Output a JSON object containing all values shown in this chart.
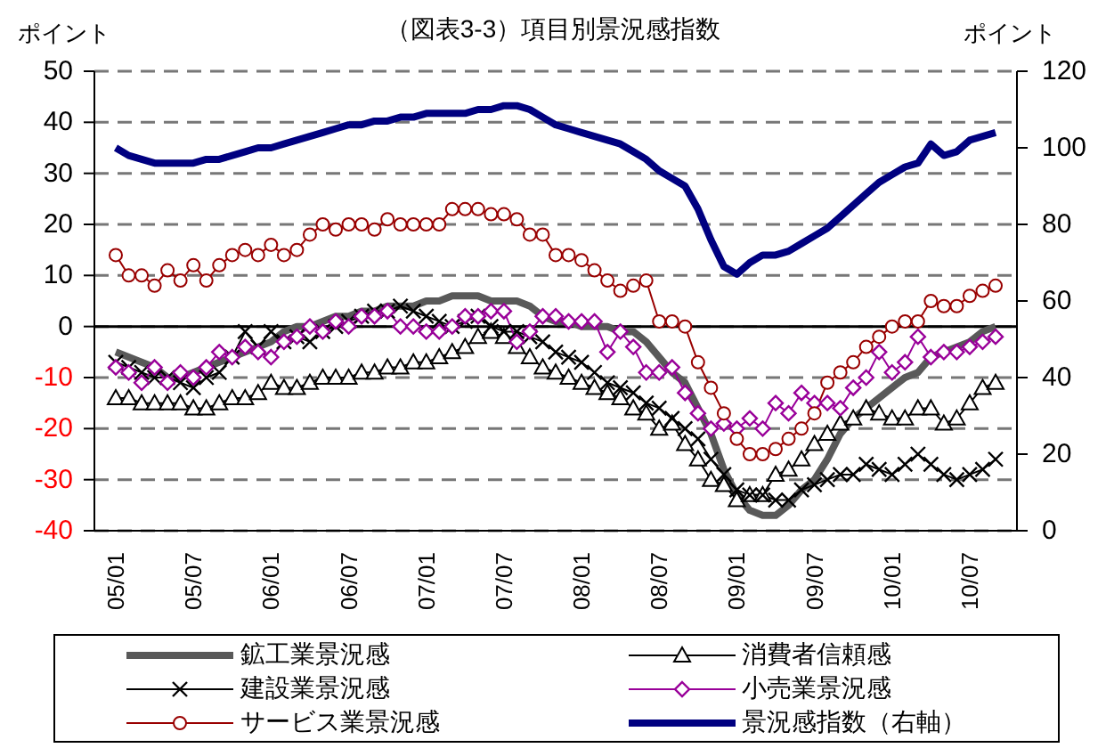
{
  "chart_data": {
    "type": "line",
    "title": "（図表3-3）項目別景況感指数",
    "ylabel": "ポイント",
    "y2label": "ポイント",
    "categories": [
      "05/01",
      null,
      null,
      null,
      null,
      null,
      "05/07",
      null,
      null,
      null,
      null,
      null,
      "06/01",
      null,
      null,
      null,
      null,
      null,
      "06/07",
      null,
      null,
      null,
      null,
      null,
      "07/01",
      null,
      null,
      null,
      null,
      null,
      "07/07",
      null,
      null,
      null,
      null,
      null,
      "08/01",
      null,
      null,
      null,
      null,
      null,
      "08/07",
      null,
      null,
      null,
      null,
      null,
      "09/01",
      null,
      null,
      null,
      null,
      null,
      "09/07",
      null,
      null,
      null,
      null,
      null,
      "10/01",
      null,
      null,
      null,
      null,
      null,
      "10/07",
      null,
      null
    ],
    "series": [
      {
        "name": "鉱工業景況感",
        "color": "#595959",
        "marker": "none",
        "values": [
          -5,
          -6,
          -7,
          -8,
          -10,
          -10,
          -9,
          -8,
          -7,
          -6,
          -5,
          -4,
          -3,
          -1,
          0,
          0,
          1,
          2,
          2,
          3,
          3,
          4,
          4,
          4,
          5,
          5,
          6,
          6,
          6,
          5,
          5,
          5,
          4,
          2,
          1,
          1,
          0,
          0,
          0,
          -1,
          -1,
          -3,
          -6,
          -9,
          -11,
          -16,
          -21,
          -28,
          -33,
          -36,
          -37,
          -37,
          -35,
          -32,
          -30,
          -26,
          -21,
          -18,
          -16,
          -14,
          -12,
          -10,
          -9,
          -6,
          -5,
          -4,
          -3,
          -1,
          0
        ]
      },
      {
        "name": "消費者信頼感",
        "color": "#000000",
        "marker": "triangle",
        "values": [
          -14,
          -14,
          -15,
          -15,
          -15,
          -15,
          -16,
          -16,
          -15,
          -14,
          -14,
          -13,
          -11,
          -12,
          -12,
          -11,
          -10,
          -10,
          -10,
          -9,
          -9,
          -8,
          -8,
          -7,
          -7,
          -6,
          -5,
          -4,
          -2,
          -1,
          -2,
          -4,
          -6,
          -8,
          -9,
          -10,
          -11,
          -12,
          -13,
          -14,
          -16,
          -17,
          -20,
          -19,
          -23,
          -26,
          -30,
          -31,
          -34,
          -33,
          -33,
          -29,
          -28,
          -26,
          -23,
          -21,
          -19,
          -18,
          -16,
          -17,
          -18,
          -18,
          -16,
          -16,
          -19,
          -18,
          -15,
          -12,
          -11
        ]
      },
      {
        "name": "建設業景況感",
        "color": "#000000",
        "marker": "cross",
        "values": [
          -7,
          -8,
          -9,
          -10,
          -10,
          -11,
          -12,
          -10,
          -9,
          -6,
          -1,
          -4,
          -1,
          -3,
          -2,
          -3,
          -1,
          0,
          1,
          2,
          3,
          3,
          4,
          3,
          2,
          1,
          0,
          1,
          2,
          0,
          -1,
          -1,
          -2,
          -3,
          -5,
          -6,
          -7,
          -9,
          -11,
          -12,
          -13,
          -15,
          -16,
          -18,
          -20,
          -22,
          -26,
          -29,
          -32,
          -33,
          -33,
          -34,
          -34,
          -32,
          -31,
          -30,
          -29,
          -29,
          -27,
          -28,
          -29,
          -27,
          -25,
          -27,
          -29,
          -30,
          -29,
          -28,
          -26
        ]
      },
      {
        "name": "小売業景況感",
        "color": "#990099",
        "marker": "diamond",
        "values": [
          -8,
          -9,
          -11,
          -8,
          -11,
          -9,
          -10,
          -8,
          -5,
          -6,
          -4,
          -5,
          -6,
          -3,
          -2,
          0,
          -1,
          1,
          0,
          2,
          2,
          3,
          0,
          0,
          -1,
          -1,
          0,
          2,
          2,
          3,
          3,
          -3,
          -1,
          2,
          2,
          1,
          1,
          1,
          -5,
          -1,
          -4,
          -9,
          -9,
          -8,
          -13,
          -17,
          -20,
          -19,
          -20,
          -18,
          -20,
          -15,
          -17,
          -13,
          -15,
          -15,
          -16,
          -12,
          -10,
          -5,
          -9,
          -7,
          -2,
          -6,
          -5,
          -5,
          -4,
          -3,
          -2
        ]
      },
      {
        "name": "サービス業景況感",
        "color": "#990000",
        "marker": "circle",
        "values": [
          14,
          10,
          10,
          8,
          11,
          9,
          12,
          9,
          12,
          14,
          15,
          14,
          16,
          14,
          15,
          18,
          20,
          19,
          20,
          20,
          19,
          21,
          20,
          20,
          20,
          20,
          23,
          23,
          23,
          22,
          22,
          21,
          18,
          18,
          14,
          14,
          13,
          11,
          9,
          7,
          8,
          9,
          1,
          1,
          0,
          -7,
          -12,
          -17,
          -22,
          -25,
          -25,
          -24,
          -22,
          -20,
          -17,
          -11,
          -9,
          -7,
          -4,
          -2,
          0,
          1,
          1,
          5,
          4,
          4,
          6,
          7,
          8
        ]
      },
      {
        "name": "景況感指数（右軸）",
        "color": "#000080",
        "marker": "none",
        "axis": "y2",
        "values": [
          100,
          98,
          97,
          96,
          96,
          96,
          96,
          97,
          97,
          98,
          99,
          100,
          100,
          101,
          102,
          103,
          104,
          105,
          106,
          106,
          107,
          107,
          108,
          108,
          109,
          109,
          109,
          109,
          110,
          110,
          111,
          111,
          110,
          108,
          106,
          105,
          104,
          103,
          102,
          101,
          99,
          97,
          94,
          92,
          90,
          84,
          76,
          69,
          67,
          70,
          72,
          72,
          73,
          75,
          77,
          79,
          82,
          85,
          88,
          91,
          93,
          95,
          96,
          101,
          98,
          99,
          102,
          103,
          104
        ]
      }
    ],
    "ylim": [
      -40,
      50
    ],
    "yticks": [
      -40,
      -30,
      -20,
      -10,
      0,
      10,
      20,
      30,
      40,
      50
    ],
    "y2lim": [
      0,
      120
    ],
    "y2ticks": [
      0,
      20,
      40,
      60,
      80,
      100,
      120
    ],
    "ref_lines": [
      {
        "axis": "y",
        "value": 0,
        "color": "#000000",
        "line_style": "solid"
      }
    ],
    "grid": "y",
    "legend": "bottom"
  }
}
